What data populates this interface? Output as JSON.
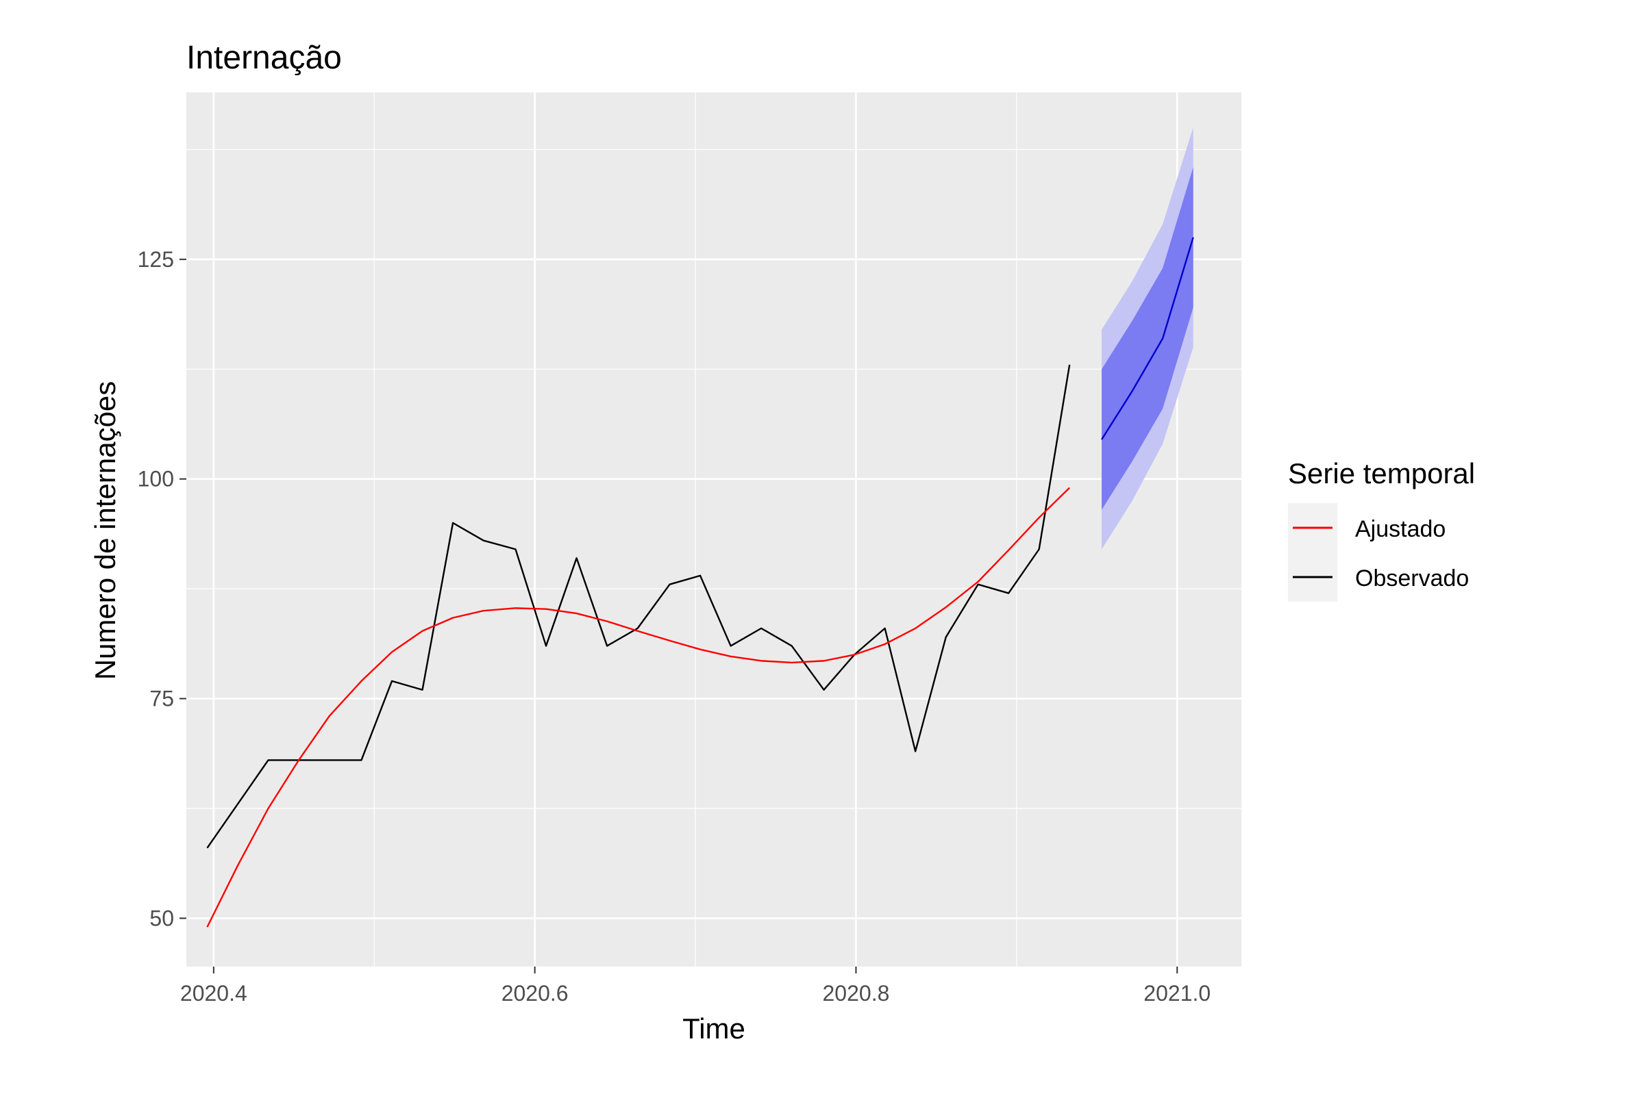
{
  "chart_data": {
    "type": "line",
    "title": "Internação",
    "xlabel": "Time",
    "ylabel": "Numero de internações",
    "xlim": [
      2020.383,
      2021.04
    ],
    "ylim": [
      44.5,
      144.0
    ],
    "x_ticks": [
      2020.4,
      2020.6,
      2020.8,
      2021.0
    ],
    "x_tick_labels": [
      "2020.4",
      "2020.6",
      "2020.8",
      "2021.0"
    ],
    "y_ticks": [
      50,
      75,
      100,
      125
    ],
    "y_tick_labels": [
      "50",
      "75",
      "100",
      "125"
    ],
    "grid": true,
    "legend": {
      "title": "Serie temporal",
      "position": "right",
      "entries": [
        {
          "label": "Ajustado",
          "color": "#ff0000"
        },
        {
          "label": "Observado",
          "color": "#000000"
        }
      ]
    },
    "series": [
      {
        "name": "Observado",
        "color": "#000000",
        "x": [
          2020.396,
          2020.434,
          2020.453,
          2020.472,
          2020.492,
          2020.511,
          2020.53,
          2020.549,
          2020.568,
          2020.588,
          2020.607,
          2020.626,
          2020.645,
          2020.664,
          2020.684,
          2020.703,
          2020.722,
          2020.741,
          2020.76,
          2020.78,
          2020.799,
          2020.818,
          2020.837,
          2020.856,
          2020.876,
          2020.895,
          2020.914,
          2020.933
        ],
        "y": [
          58,
          68,
          68,
          68,
          68,
          77,
          76,
          95,
          93,
          92,
          81,
          91,
          81,
          83,
          88,
          89,
          81,
          83,
          81,
          76,
          80,
          83,
          69,
          82,
          88,
          87,
          92,
          113
        ]
      },
      {
        "name": "Ajustado",
        "color": "#ff0000",
        "x": [
          2020.396,
          2020.415,
          2020.434,
          2020.453,
          2020.472,
          2020.492,
          2020.511,
          2020.53,
          2020.549,
          2020.568,
          2020.588,
          2020.607,
          2020.626,
          2020.645,
          2020.664,
          2020.684,
          2020.703,
          2020.722,
          2020.741,
          2020.76,
          2020.78,
          2020.799,
          2020.818,
          2020.837,
          2020.856,
          2020.876,
          2020.895,
          2020.914,
          2020.933
        ],
        "y": [
          49.0,
          56.0,
          62.5,
          68.0,
          73.0,
          77.0,
          80.3,
          82.7,
          84.2,
          85.0,
          85.3,
          85.2,
          84.7,
          83.8,
          82.7,
          81.6,
          80.6,
          79.8,
          79.3,
          79.1,
          79.3,
          80.0,
          81.2,
          83.0,
          85.4,
          88.3,
          91.9,
          95.6,
          99.0
        ]
      }
    ],
    "forecast": {
      "x": [
        2020.953,
        2020.972,
        2020.991,
        2021.01
      ],
      "mean": [
        104.5,
        110.0,
        116.0,
        127.5
      ],
      "lo80": [
        96.5,
        102.0,
        108.0,
        119.5
      ],
      "hi80": [
        112.5,
        118.0,
        124.0,
        135.5
      ],
      "lo95": [
        92.0,
        97.5,
        104.0,
        115.0
      ],
      "hi95": [
        117.0,
        122.5,
        129.0,
        140.0
      ],
      "mean_color": "#0000cc",
      "band80_color": "#7b7bf2",
      "band95_color": "#c4c4f5"
    },
    "panel_color": "#ebebeb",
    "grid_color": "#ffffff"
  }
}
